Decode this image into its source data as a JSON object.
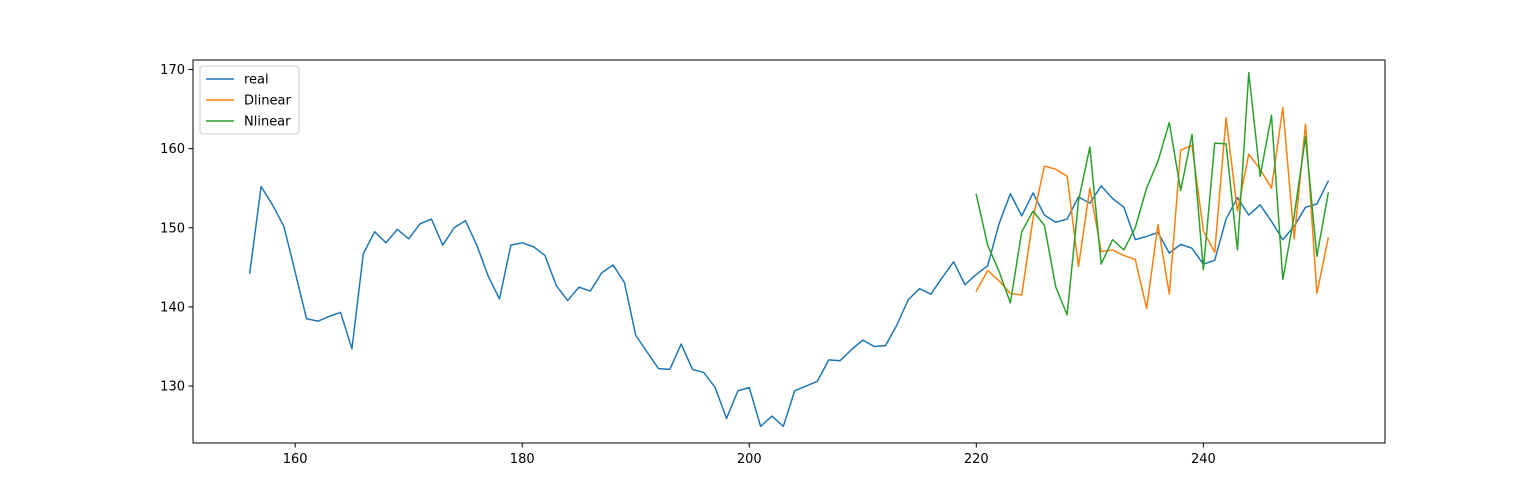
{
  "chart_data": {
    "type": "line",
    "title": "",
    "xlabel": "",
    "ylabel": "",
    "xlim": [
      151,
      256
    ],
    "ylim": [
      122.8,
      171.2
    ],
    "xticks": [
      160,
      180,
      200,
      220,
      240
    ],
    "yticks": [
      130,
      140,
      150,
      160,
      170
    ],
    "grid": false,
    "legend_position": "top-left",
    "series": [
      {
        "name": "real",
        "color": "#1f77b4",
        "x": [
          156,
          157,
          158,
          159,
          160,
          161,
          162,
          163,
          164,
          165,
          166,
          167,
          168,
          169,
          170,
          171,
          172,
          173,
          174,
          175,
          176,
          177,
          178,
          179,
          180,
          181,
          182,
          183,
          184,
          185,
          186,
          187,
          188,
          189,
          190,
          191,
          192,
          193,
          194,
          195,
          196,
          197,
          198,
          199,
          200,
          201,
          202,
          203,
          204,
          205,
          206,
          207,
          208,
          209,
          210,
          211,
          212,
          213,
          214,
          215,
          216,
          217,
          218,
          219,
          220,
          221,
          222,
          223,
          224,
          225,
          226,
          227,
          228,
          229,
          230,
          231,
          232,
          233,
          234,
          235,
          236,
          237,
          238,
          239,
          240,
          241,
          242,
          243,
          244,
          245,
          246,
          247,
          248,
          249,
          250,
          251
        ],
        "y": [
          144.3,
          155.2,
          152.9,
          150.2,
          144.4,
          138.5,
          138.2,
          138.8,
          139.3,
          134.7,
          146.7,
          149.5,
          148.1,
          149.8,
          148.6,
          150.5,
          151.1,
          147.8,
          150.0,
          150.9,
          147.8,
          143.9,
          141.0,
          147.8,
          148.1,
          147.6,
          146.5,
          142.7,
          140.8,
          142.5,
          142.0,
          144.3,
          145.3,
          143.1,
          136.4,
          134.3,
          132.2,
          132.1,
          135.3,
          132.1,
          131.7,
          129.8,
          125.9,
          129.4,
          129.8,
          124.9,
          126.2,
          124.9,
          129.4,
          130.0,
          130.6,
          133.3,
          133.2,
          134.6,
          135.8,
          135.0,
          135.1,
          137.7,
          140.9,
          142.3,
          141.6,
          143.7,
          145.7,
          142.8,
          144.1,
          145.2,
          150.5,
          154.3,
          151.5,
          154.4,
          151.6,
          150.7,
          151.1,
          153.9,
          153.1,
          155.3,
          153.7,
          152.6,
          148.5,
          148.9,
          149.4,
          146.8,
          147.9,
          147.4,
          145.4,
          145.9,
          151.1,
          153.8,
          151.6,
          152.9,
          150.8,
          148.5,
          150.2,
          152.6,
          153.0,
          155.9
        ]
      },
      {
        "name": "Dlinear",
        "color": "#ff7f0e",
        "x": [
          220,
          221,
          222,
          223,
          224,
          225,
          226,
          227,
          228,
          229,
          230,
          231,
          232,
          233,
          234,
          235,
          236,
          237,
          238,
          239,
          240,
          241,
          242,
          243,
          244,
          245,
          246,
          247,
          248,
          249,
          250,
          251
        ],
        "y": [
          142.0,
          144.6,
          143.3,
          141.7,
          141.5,
          151.2,
          157.8,
          157.4,
          156.5,
          145.1,
          155.0,
          147.0,
          147.2,
          146.5,
          146.0,
          139.8,
          150.4,
          141.6,
          159.8,
          160.4,
          149.6,
          146.9,
          163.9,
          152.1,
          159.3,
          157.4,
          155.0,
          165.2,
          148.6,
          163.1,
          141.7,
          148.7
        ]
      },
      {
        "name": "Nlinear",
        "color": "#2ca02c",
        "x": [
          220,
          221,
          222,
          223,
          224,
          225,
          226,
          227,
          228,
          229,
          230,
          231,
          232,
          233,
          234,
          235,
          236,
          237,
          238,
          239,
          240,
          241,
          242,
          243,
          244,
          245,
          246,
          247,
          248,
          249,
          250,
          251
        ],
        "y": [
          154.2,
          147.8,
          144.5,
          140.5,
          149.5,
          152.1,
          150.3,
          142.5,
          139.0,
          153.4,
          160.2,
          145.4,
          148.5,
          147.2,
          150.0,
          155.0,
          158.4,
          163.3,
          154.7,
          161.8,
          144.7,
          160.7,
          160.6,
          147.2,
          169.6,
          156.5,
          164.2,
          143.5,
          151.5,
          161.5,
          146.4,
          154.4
        ]
      }
    ]
  }
}
